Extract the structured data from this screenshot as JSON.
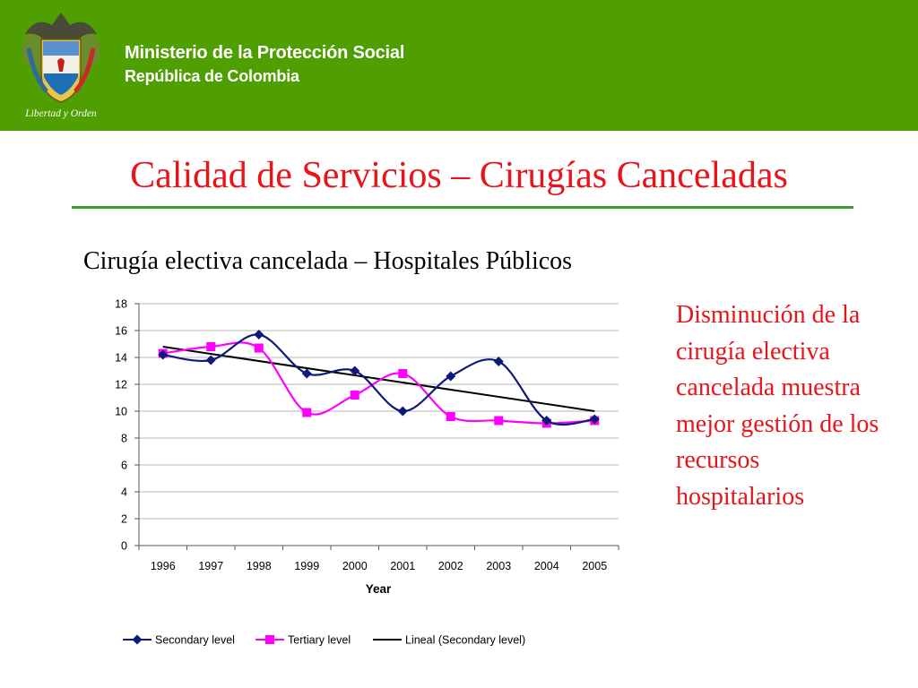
{
  "header": {
    "ministry_line1": "Ministerio de la Protección Social",
    "ministry_line2": "República de Colombia",
    "crest_motto": "Libertad y Orden",
    "background_color": "#4f9e02"
  },
  "slide": {
    "title": "Calidad de Servicios – Cirugías Canceladas",
    "chart_title": "Cirugía electiva cancelada – Hospitales Públicos",
    "note": "Disminución de la cirugía electiva cancelada muestra mejor gestión de los recursos hospitalarios",
    "accent_color": "#e8141a",
    "rule_color": "#3a9a2a"
  },
  "chart_data": {
    "type": "line",
    "title": "Cirugía electiva cancelada – Hospitales Públicos",
    "xlabel": "Year",
    "ylabel": "",
    "categories": [
      "1996",
      "1997",
      "1998",
      "1999",
      "2000",
      "2001",
      "2002",
      "2003",
      "2004",
      "2005"
    ],
    "ylim": [
      0,
      18
    ],
    "yticks": [
      0,
      2,
      4,
      6,
      8,
      10,
      12,
      14,
      16,
      18
    ],
    "grid": true,
    "legend_position": "bottom",
    "series": [
      {
        "name": "Secondary level",
        "values": [
          14.2,
          13.8,
          15.7,
          12.8,
          13.0,
          10.0,
          12.6,
          13.7,
          9.3,
          9.4
        ],
        "color": "#0d1a7a",
        "marker": "diamond"
      },
      {
        "name": "Tertiary level",
        "values": [
          14.3,
          14.8,
          14.7,
          9.9,
          11.2,
          12.8,
          9.6,
          9.3,
          9.1,
          9.3
        ],
        "color": "#ff00ff",
        "marker": "square"
      }
    ],
    "trendline": {
      "name": "Lineal (Secondary level)",
      "values": [
        14.8,
        14.2,
        13.8,
        13.3,
        12.8,
        12.3,
        11.8,
        11.1,
        10.6,
        10.0
      ],
      "color": "#000000"
    }
  }
}
